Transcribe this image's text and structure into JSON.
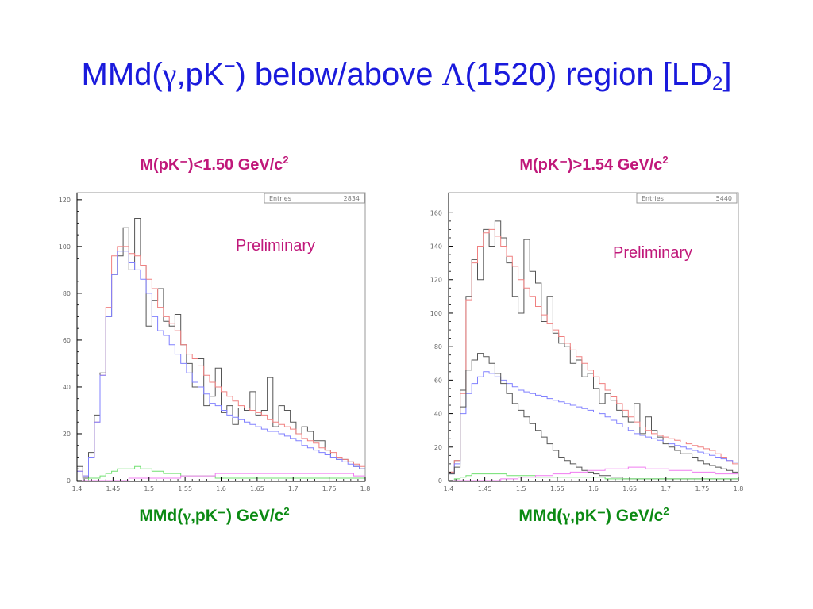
{
  "slide": {
    "title_prefix": "MMd(",
    "title_gamma": "γ",
    "title_mid": ",pK",
    "title_minus": "−",
    "title_after": ") below/above ",
    "title_lambda": "Λ",
    "title_suffix": "(1520) region [LD",
    "title_sub": "2",
    "title_close": "]"
  },
  "panels": [
    {
      "title_main": "M(pK⁻)<1.50 GeV/c",
      "title_sup": "2",
      "xtitle_prefix": "MMd(",
      "xtitle_gamma": "γ",
      "xtitle_rest": ",pK⁻) GeV/c",
      "xtitle_sup": "2",
      "stat_label": "Entries",
      "stat_value": "2834",
      "annotation": "Preliminary"
    },
    {
      "title_main": "M(pK⁻)>1.54 GeV/c",
      "title_sup": "2",
      "xtitle_prefix": "MMd(",
      "xtitle_gamma": "γ",
      "xtitle_rest": ",pK⁻) GeV/c",
      "xtitle_sup": "2",
      "stat_label": "Entries",
      "stat_value": "5440",
      "annotation": "Preliminary"
    }
  ],
  "colors": {
    "title": "#1a1adc",
    "panel_title": "#c0187a",
    "axis_title": "#0b8a13",
    "data": "#555555",
    "red": "#f08080",
    "blue": "#8080ff",
    "green": "#70e070",
    "magenta": "#f07cf0"
  },
  "chart_data": [
    {
      "type": "line",
      "subtype": "histogram",
      "xlim": [
        1.4,
        1.8
      ],
      "ylim": [
        0,
        123
      ],
      "xticks": [
        1.4,
        1.45,
        1.5,
        1.55,
        1.6,
        1.65,
        1.7,
        1.75,
        1.8
      ],
      "xtick_labels": [
        "1.4",
        "1.45",
        "1.5",
        "1.55",
        "1.6",
        "1.65",
        "1.7",
        "1.75",
        "1.8"
      ],
      "yticks": [
        0,
        20,
        40,
        60,
        80,
        100,
        120
      ],
      "bin_width": 0.008,
      "x_start": 1.4,
      "series": [
        {
          "color": "#555555",
          "values": [
            6,
            1,
            12,
            28,
            46,
            70,
            88,
            96,
            108,
            90,
            112,
            92,
            66,
            77,
            82,
            68,
            66,
            71,
            58,
            50,
            40,
            52,
            32,
            36,
            48,
            29,
            32,
            24,
            31,
            30,
            38,
            28,
            30,
            44,
            23,
            32,
            30,
            25,
            20,
            23,
            21,
            17,
            17,
            13,
            10,
            9,
            9,
            8,
            6,
            5
          ]
        },
        {
          "color": "#f08080",
          "values": [
            4,
            2,
            10,
            25,
            45,
            74,
            96,
            100,
            100,
            97,
            96,
            92,
            86,
            82,
            74,
            70,
            67,
            64,
            58,
            54,
            52,
            49,
            45,
            42,
            40,
            38,
            36,
            34,
            32,
            31,
            30,
            29,
            28,
            26,
            25,
            24,
            23,
            22,
            20,
            18,
            17,
            16,
            14,
            13,
            12,
            10,
            9,
            8,
            7,
            6
          ]
        },
        {
          "color": "#8080ff",
          "values": [
            4,
            2,
            10,
            25,
            45,
            70,
            88,
            98,
            98,
            93,
            90,
            86,
            80,
            70,
            64,
            62,
            58,
            54,
            50,
            46,
            42,
            40,
            37,
            33,
            32,
            30,
            28,
            27,
            26,
            25,
            24,
            23,
            22,
            21,
            21,
            20,
            19,
            18,
            17,
            15,
            14,
            13,
            12,
            11,
            10,
            9,
            8,
            7,
            6,
            5
          ]
        },
        {
          "color": "#70e070",
          "values": [
            0,
            0,
            1,
            1,
            2,
            3,
            4,
            5,
            5,
            5,
            6,
            5,
            5,
            4,
            4,
            3,
            3,
            3,
            2,
            2,
            2,
            2,
            2,
            2,
            1,
            1,
            1,
            1,
            1,
            1,
            1,
            1,
            1,
            1,
            1,
            1,
            1,
            1,
            1,
            1,
            1,
            1,
            1,
            1,
            1,
            1,
            1,
            1,
            1,
            1
          ]
        },
        {
          "color": "#f07cf0",
          "values": [
            0,
            0,
            0,
            0,
            0,
            0,
            0,
            0,
            0,
            1,
            1,
            1,
            1,
            1,
            1,
            1,
            1,
            1,
            2,
            2,
            2,
            2,
            2,
            2,
            3,
            3,
            3,
            3,
            3,
            3,
            3,
            3,
            3,
            3,
            3,
            3,
            3,
            3,
            3,
            3,
            3,
            3,
            3,
            3,
            3,
            3,
            3,
            3,
            2,
            2
          ]
        }
      ]
    },
    {
      "type": "line",
      "subtype": "histogram",
      "xlim": [
        1.4,
        1.8
      ],
      "ylim": [
        0,
        172
      ],
      "xticks": [
        1.4,
        1.45,
        1.5,
        1.55,
        1.6,
        1.65,
        1.7,
        1.75,
        1.8
      ],
      "xtick_labels": [
        "1.4",
        "1.45",
        "1.5",
        "1.55",
        "1.6",
        "1.65",
        "1.7",
        "1.75",
        "1.8"
      ],
      "yticks": [
        0,
        20,
        40,
        60,
        80,
        100,
        120,
        140,
        160
      ],
      "bin_width": 0.008,
      "x_start": 1.4,
      "series": [
        {
          "color": "#555555",
          "values": [
            5,
            12,
            54,
            110,
            132,
            120,
            150,
            140,
            155,
            145,
            130,
            110,
            100,
            144,
            125,
            118,
            95,
            110,
            88,
            82,
            80,
            70,
            72,
            62,
            64,
            55,
            46,
            52,
            48,
            42,
            38,
            35,
            46,
            28,
            38,
            30,
            26,
            22,
            20,
            18,
            16,
            16,
            14,
            12,
            10,
            9,
            8,
            7,
            6,
            5
          ]
        },
        {
          "color": "#f08080",
          "values": [
            5,
            12,
            52,
            108,
            130,
            140,
            148,
            150,
            146,
            140,
            134,
            128,
            120,
            115,
            110,
            104,
            99,
            94,
            90,
            86,
            82,
            78,
            74,
            70,
            66,
            62,
            58,
            54,
            50,
            46,
            42,
            38,
            35,
            32,
            30,
            28,
            27,
            26,
            25,
            24,
            23,
            22,
            21,
            20,
            19,
            18,
            16,
            14,
            12,
            10
          ]
        },
        {
          "color": "#8080ff",
          "values": [
            4,
            10,
            40,
            52,
            58,
            62,
            65,
            64,
            62,
            60,
            58,
            56,
            54,
            53,
            52,
            51,
            50,
            49,
            48,
            47,
            46,
            45,
            44,
            43,
            42,
            41,
            40,
            38,
            36,
            34,
            32,
            30,
            28,
            27,
            26,
            25,
            24,
            23,
            22,
            21,
            20,
            19,
            18,
            17,
            16,
            15,
            14,
            13,
            12,
            11
          ]
        },
        {
          "color": "#555555",
          "values": [
            4,
            8,
            44,
            66,
            72,
            76,
            74,
            70,
            64,
            58,
            52,
            46,
            42,
            38,
            34,
            30,
            26,
            22,
            18,
            14,
            12,
            10,
            8,
            6,
            5,
            4,
            3,
            3,
            2,
            2,
            1,
            1,
            1,
            1,
            1,
            1,
            1,
            1,
            1,
            1,
            1,
            1,
            1,
            1,
            1,
            1,
            1,
            1,
            1,
            1
          ]
        },
        {
          "color": "#70e070",
          "values": [
            0,
            1,
            2,
            3,
            4,
            4,
            4,
            4,
            4,
            4,
            3,
            3,
            3,
            3,
            3,
            2,
            2,
            2,
            2,
            2,
            2,
            2,
            2,
            2,
            2,
            2,
            2,
            1,
            1,
            1,
            1,
            1,
            1,
            1,
            1,
            1,
            1,
            1,
            1,
            1,
            1,
            1,
            1,
            1,
            1,
            1,
            1,
            1,
            1,
            1
          ]
        },
        {
          "color": "#f07cf0",
          "values": [
            0,
            0,
            0,
            0,
            0,
            0,
            0,
            0,
            0,
            1,
            1,
            1,
            2,
            2,
            2,
            3,
            3,
            3,
            4,
            4,
            4,
            5,
            5,
            5,
            6,
            6,
            6,
            7,
            7,
            7,
            7,
            8,
            8,
            8,
            7,
            7,
            7,
            7,
            6,
            6,
            6,
            6,
            5,
            5,
            5,
            5,
            4,
            4,
            4,
            4
          ]
        }
      ]
    }
  ]
}
